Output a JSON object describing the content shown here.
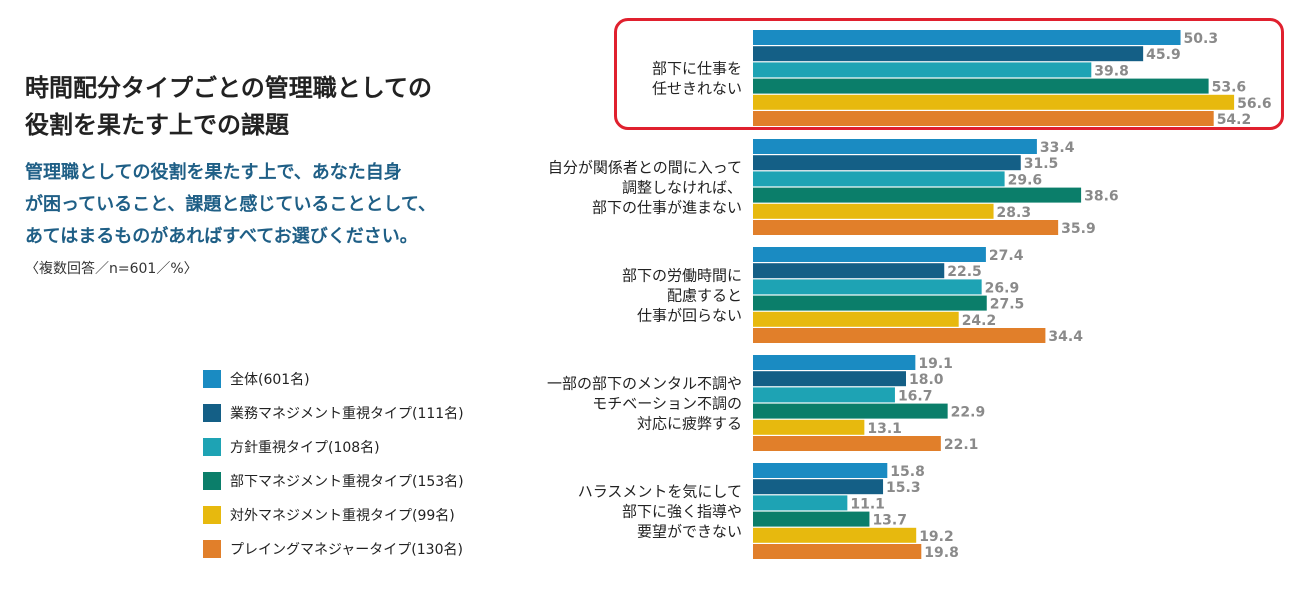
{
  "header": {
    "title": "時間配分タイプごとの管理職としての\n役割を果たす上での課題",
    "subtitle": "管理職としての役割を果たす上で、あなた自身\nが困っていること、課題と感じていることとして、\nあてはまるものがあればすべてお選びください。",
    "note": "〈複数回答／n=601／%〉"
  },
  "colors": {
    "highlight": "#e0202e"
  },
  "chart_data": {
    "type": "bar",
    "orientation": "horizontal",
    "categories": [
      [
        "部下に仕事を",
        "任せきれない"
      ],
      [
        "自分が関係者との間に入って",
        "調整しなければ、",
        "部下の仕事が進まない"
      ],
      [
        "部下の労働時間に",
        "配慮すると",
        "仕事が回らない"
      ],
      [
        "一部の部下のメンタル不調や",
        "モチベーション不調の",
        "対応に疲弊する"
      ],
      [
        "ハラスメントを気にして",
        "部下に強く指導や",
        "要望ができない"
      ]
    ],
    "series": [
      {
        "name": "全体(601名)",
        "color": "#1a8bc2",
        "values": [
          50.3,
          33.4,
          27.4,
          19.1,
          15.8
        ]
      },
      {
        "name": "業務マネジメント重視タイプ(111名)",
        "color": "#145f86",
        "values": [
          45.9,
          31.5,
          22.5,
          18.0,
          15.3
        ]
      },
      {
        "name": "方針重視タイプ(108名)",
        "color": "#1ea3b4",
        "values": [
          39.8,
          29.6,
          26.9,
          16.7,
          11.1
        ]
      },
      {
        "name": "部下マネジメント重視タイプ(153名)",
        "color": "#0b7e6a",
        "values": [
          53.6,
          38.6,
          27.5,
          22.9,
          13.7
        ]
      },
      {
        "name": "対外マネジメント重視タイプ(99名)",
        "color": "#e7b90e",
        "values": [
          56.6,
          28.3,
          24.2,
          13.1,
          19.2
        ]
      },
      {
        "name": "プレイングマネジャータイプ(130名)",
        "color": "#e17f2a",
        "values": [
          54.2,
          35.9,
          34.4,
          22.1,
          19.8
        ]
      }
    ],
    "xlim": [
      0,
      60
    ],
    "highlighted_category": 0
  }
}
